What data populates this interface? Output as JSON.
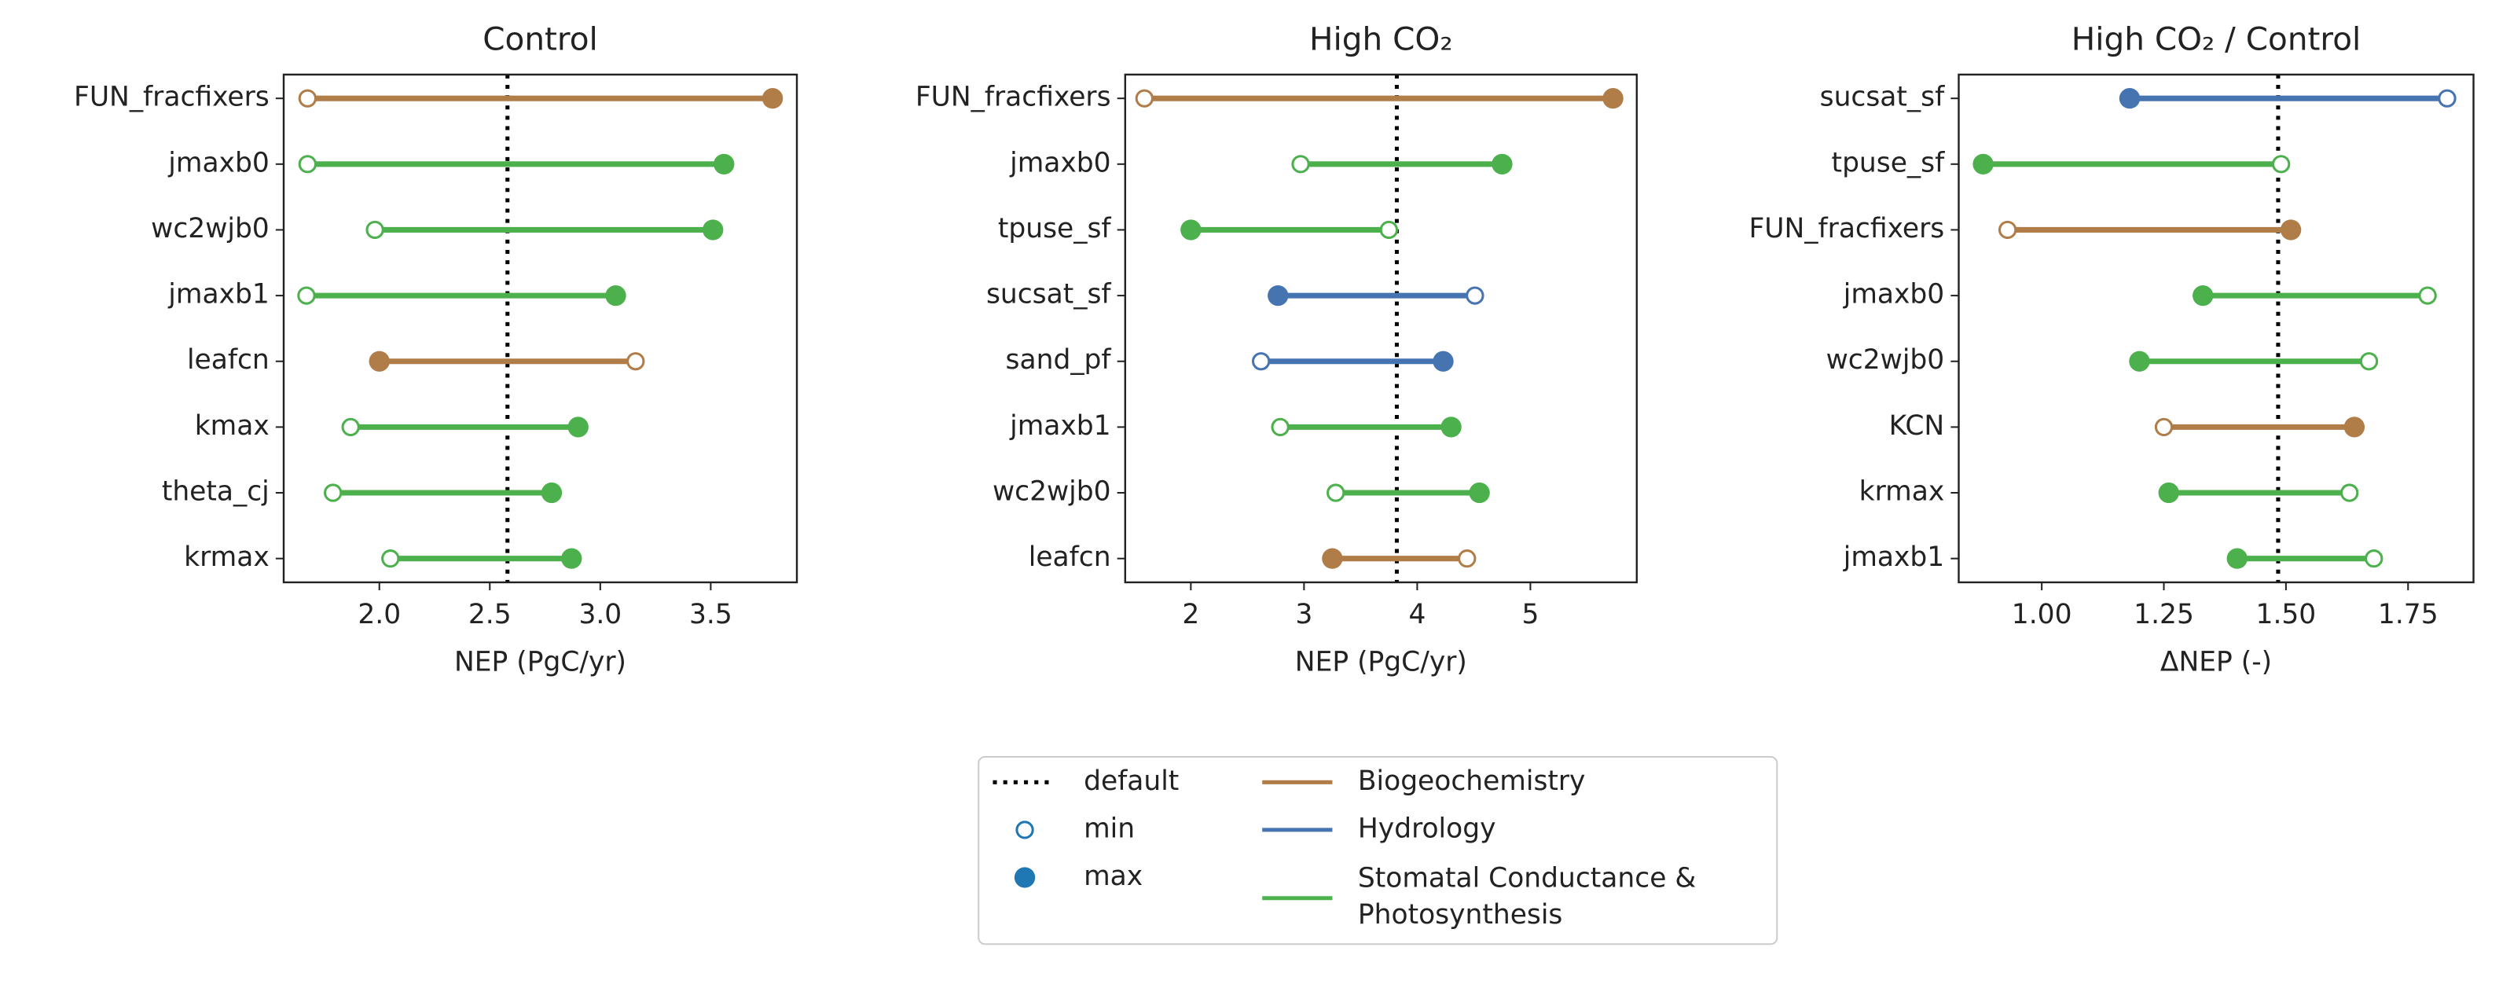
{
  "chart_data": [
    {
      "type": "dumbbell",
      "title": "Control",
      "xlabel": "NEP (PgC/yr)",
      "categories": [
        "FUN_fracfixers",
        "jmaxb0",
        "wc2wjb0",
        "jmaxb1",
        "leafcn",
        "kmax",
        "theta_cj",
        "krmax"
      ],
      "group": [
        "Biogeochemistry",
        "Stomatal Conductance & Photosynthesis",
        "Stomatal Conductance & Photosynthesis",
        "Stomatal Conductance & Photosynthesis",
        "Biogeochemistry",
        "Stomatal Conductance & Photosynthesis",
        "Stomatal Conductance & Photosynthesis",
        "Stomatal Conductance & Photosynthesis"
      ],
      "series": [
        {
          "name": "min",
          "values": [
            1.675,
            1.675,
            1.98,
            1.67,
            3.16,
            1.87,
            1.79,
            2.05
          ]
        },
        {
          "name": "max",
          "values": [
            3.78,
            3.56,
            3.51,
            3.07,
            2.0,
            2.9,
            2.78,
            2.87
          ]
        }
      ],
      "default": 2.58,
      "xlim": [
        1.567,
        3.89
      ],
      "xticks": [
        {
          "value": 2,
          "label": "2.0"
        },
        2.5,
        {
          "value": 3,
          "label": "3.0"
        },
        3.5
      ]
    },
    {
      "type": "dumbbell",
      "title": "High CO₂",
      "xlabel": "NEP (PgC/yr)",
      "categories": [
        "FUN_fracfixers",
        "jmaxb0",
        "tpuse_sf",
        "sucsat_sf",
        "sand_pf",
        "jmaxb1",
        "wc2wjb0",
        "leafcn"
      ],
      "group": [
        "Biogeochemistry",
        "Stomatal Conductance & Photosynthesis",
        "Stomatal Conductance & Photosynthesis",
        "Hydrology",
        "Hydrology",
        "Stomatal Conductance & Photosynthesis",
        "Stomatal Conductance & Photosynthesis",
        "Biogeochemistry"
      ],
      "series": [
        {
          "name": "min",
          "values": [
            1.59,
            2.97,
            3.75,
            4.51,
            2.62,
            2.79,
            3.28,
            4.44
          ]
        },
        {
          "name": "max",
          "values": [
            5.73,
            4.75,
            2.0,
            2.77,
            4.23,
            4.3,
            4.55,
            3.25
          ]
        }
      ],
      "default": 3.82,
      "xlim": [
        1.42,
        5.94
      ],
      "xticks": [
        2,
        3,
        4,
        5
      ]
    },
    {
      "type": "dumbbell",
      "title": "High CO₂ / Control",
      "xlabel": "ΔNEP (-)",
      "categories": [
        "sucsat_sf",
        "tpuse_sf",
        "FUN_fracfixers",
        "jmaxb0",
        "wc2wjb0",
        "KCN",
        "krmax",
        "jmaxb1"
      ],
      "group": [
        "Hydrology",
        "Stomatal Conductance & Photosynthesis",
        "Biogeochemistry",
        "Stomatal Conductance & Photosynthesis",
        "Stomatal Conductance & Photosynthesis",
        "Biogeochemistry",
        "Stomatal Conductance & Photosynthesis",
        "Stomatal Conductance & Photosynthesis"
      ],
      "series": [
        {
          "name": "min",
          "values": [
            1.83,
            1.49,
            0.93,
            1.79,
            1.67,
            1.25,
            1.63,
            1.68
          ]
        },
        {
          "name": "max",
          "values": [
            1.18,
            0.88,
            1.51,
            1.33,
            1.2,
            1.64,
            1.26,
            1.4
          ]
        }
      ],
      "default": 1.484,
      "xlim": [
        0.83,
        1.884
      ],
      "xticks": [
        {
          "value": 1,
          "label": "1.00"
        },
        1.25,
        {
          "value": 1.5,
          "label": "1.50"
        },
        1.75
      ]
    }
  ],
  "legend": {
    "default": "default",
    "groups": [
      {
        "name": "Biogeochemistry",
        "color": "#b07d48"
      },
      {
        "name": "Hydrology",
        "color": "#4574b0"
      },
      {
        "name": "Stomatal Conductance & Photosynthesis",
        "color": "#4cb04c"
      }
    ]
  }
}
